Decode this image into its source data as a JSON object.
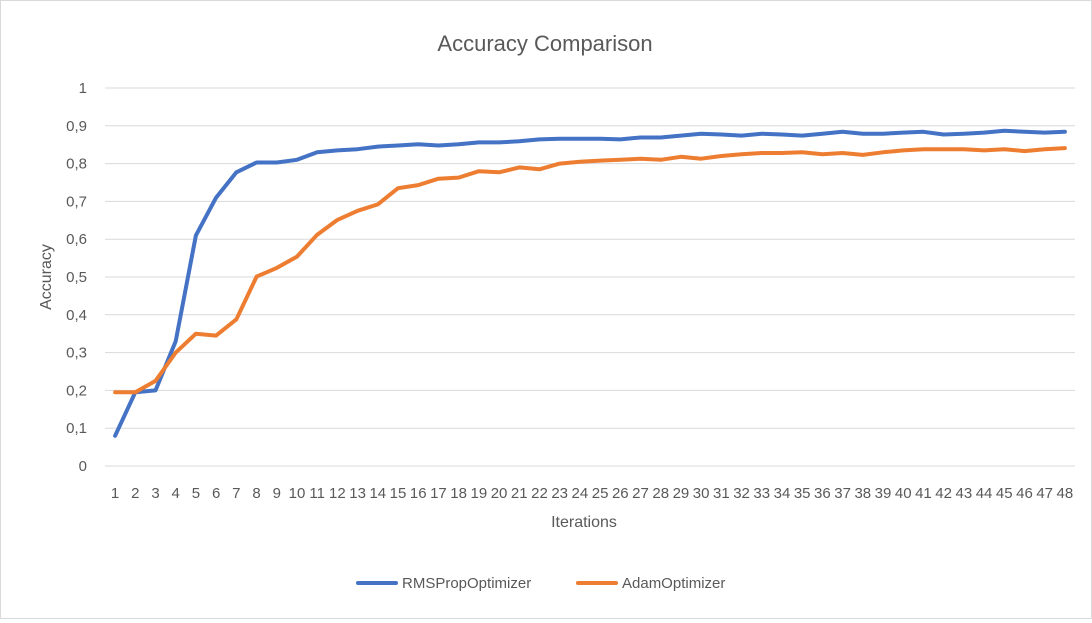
{
  "chart_data": {
    "type": "line",
    "title": "Accuracy Comparison",
    "xlabel": "Iterations",
    "ylabel": "Accuracy",
    "ylim": [
      0,
      1
    ],
    "yticks": [
      "0",
      "0,1",
      "0,2",
      "0,3",
      "0,4",
      "0,5",
      "0,6",
      "0,7",
      "0,8",
      "0,9",
      "1"
    ],
    "yticks_values": [
      0,
      0.1,
      0.2,
      0.3,
      0.4,
      0.5,
      0.6,
      0.7,
      0.8,
      0.9,
      1
    ],
    "grid": true,
    "legend_position": "bottom",
    "categories": [
      "1",
      "2",
      "3",
      "4",
      "5",
      "6",
      "7",
      "8",
      "9",
      "10",
      "11",
      "12",
      "13",
      "14",
      "15",
      "16",
      "17",
      "18",
      "19",
      "20",
      "21",
      "22",
      "23",
      "24",
      "25",
      "26",
      "27",
      "28",
      "29",
      "30",
      "31",
      "32",
      "33",
      "34",
      "35",
      "36",
      "37",
      "38",
      "39",
      "40",
      "41",
      "42",
      "43",
      "44",
      "45",
      "46",
      "47",
      "48"
    ],
    "series": [
      {
        "name": "RMSPropOptimizer",
        "color": "#4472C4",
        "values": [
          0.08,
          0.195,
          0.2,
          0.33,
          0.61,
          0.71,
          0.777,
          0.803,
          0.803,
          0.81,
          0.83,
          0.835,
          0.838,
          0.845,
          0.848,
          0.851,
          0.848,
          0.851,
          0.856,
          0.856,
          0.859,
          0.864,
          0.866,
          0.866,
          0.866,
          0.864,
          0.869,
          0.869,
          0.874,
          0.879,
          0.877,
          0.874,
          0.879,
          0.877,
          0.874,
          0.879,
          0.884,
          0.879,
          0.879,
          0.882,
          0.884,
          0.877,
          0.879,
          0.882,
          0.887,
          0.884,
          0.882,
          0.884
        ]
      },
      {
        "name": "AdamOptimizer",
        "color": "#ED7D31",
        "values": [
          0.195,
          0.195,
          0.225,
          0.3,
          0.35,
          0.345,
          0.388,
          0.501,
          0.524,
          0.554,
          0.612,
          0.651,
          0.675,
          0.692,
          0.735,
          0.743,
          0.76,
          0.763,
          0.78,
          0.777,
          0.79,
          0.785,
          0.8,
          0.805,
          0.808,
          0.81,
          0.813,
          0.81,
          0.818,
          0.813,
          0.82,
          0.825,
          0.828,
          0.828,
          0.83,
          0.825,
          0.828,
          0.823,
          0.83,
          0.835,
          0.838,
          0.838,
          0.838,
          0.835,
          0.838,
          0.833,
          0.838,
          0.841
        ]
      }
    ]
  }
}
